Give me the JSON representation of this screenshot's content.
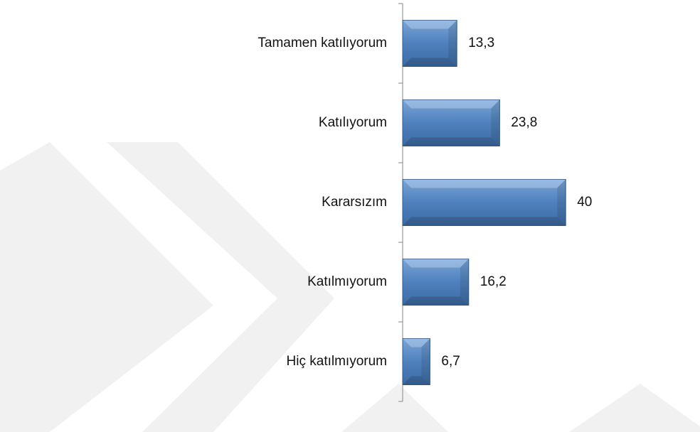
{
  "chart_data": {
    "type": "bar",
    "orientation": "horizontal",
    "categories": [
      "Tamamen katılıyorum",
      "Katılıyorum",
      "Kararsızım",
      "Katılmıyorum",
      "Hiç katılmıyorum"
    ],
    "values": [
      13.3,
      23.8,
      40,
      16.2,
      6.7
    ],
    "value_labels": [
      "13,3",
      "23,8",
      "40",
      "16,2",
      "6,7"
    ],
    "color": "#4f81bd"
  }
}
